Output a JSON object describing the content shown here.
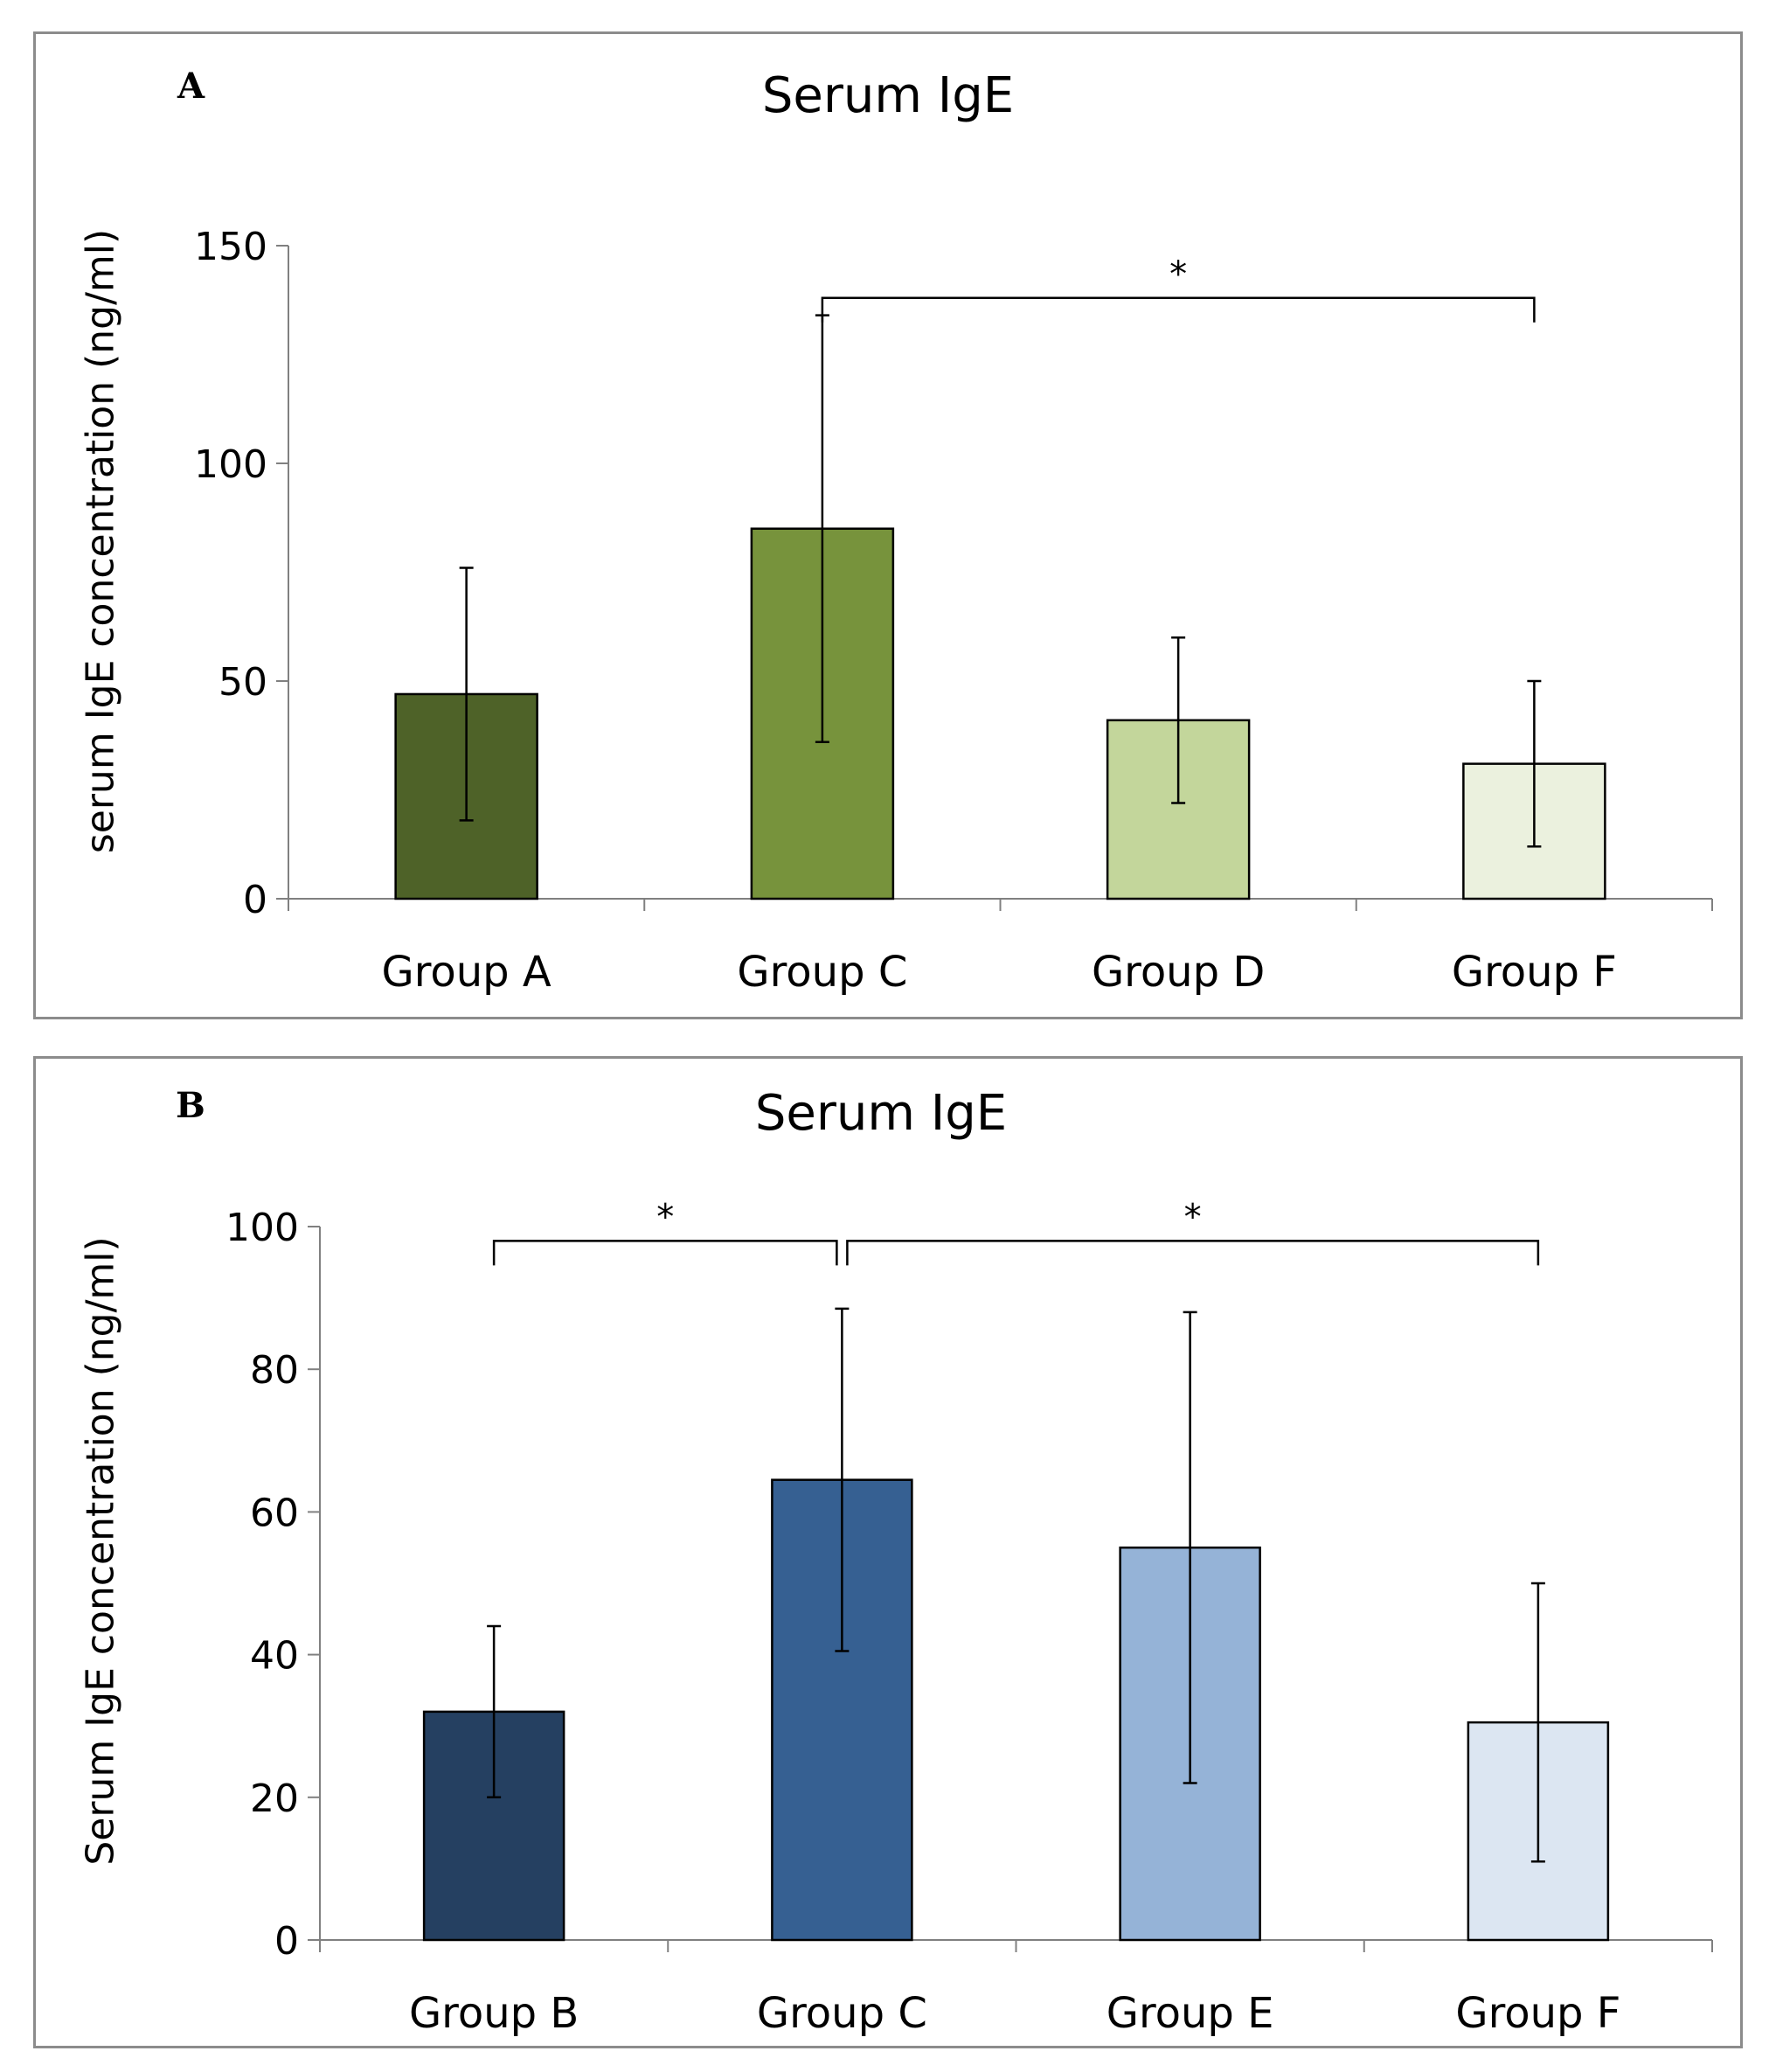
{
  "chart_data": [
    {
      "panel_label": "A",
      "type": "bar",
      "title": "Serum IgE",
      "ylabel": "serum IgE concentration (ng/ml)",
      "xlabel": "",
      "ylim": [
        0,
        150
      ],
      "yticks": [
        0,
        50,
        100,
        150
      ],
      "categories": [
        "Group A",
        "Group C",
        "Group D",
        "Group F"
      ],
      "values": [
        47,
        85,
        41,
        31
      ],
      "error_bars": [
        29,
        49,
        19,
        19
      ],
      "colors": [
        "#4e6228",
        "#77933c",
        "#c3d69b",
        "#ebf1de"
      ],
      "significance": [
        {
          "from": 1,
          "to": 3,
          "level": 138,
          "label": "*"
        }
      ]
    },
    {
      "panel_label": "B",
      "type": "bar",
      "title": "Serum IgE",
      "ylabel": "Serum IgE  concentration (ng/ml)",
      "xlabel": "",
      "ylim": [
        0,
        100
      ],
      "yticks": [
        0,
        20,
        40,
        60,
        80,
        100
      ],
      "categories": [
        "Group B",
        "Group C",
        "Group E",
        "Group F"
      ],
      "values": [
        32,
        64.5,
        55,
        30.5
      ],
      "error_bars": [
        12,
        24,
        33,
        19.5
      ],
      "colors": [
        "#254061",
        "#366092",
        "#95b3d7",
        "#dce6f2"
      ],
      "significance": [
        {
          "from": 0,
          "to": 1,
          "level": 98,
          "label": "*"
        },
        {
          "from": 1,
          "to": 3,
          "level": 98,
          "label": "*"
        }
      ]
    }
  ]
}
